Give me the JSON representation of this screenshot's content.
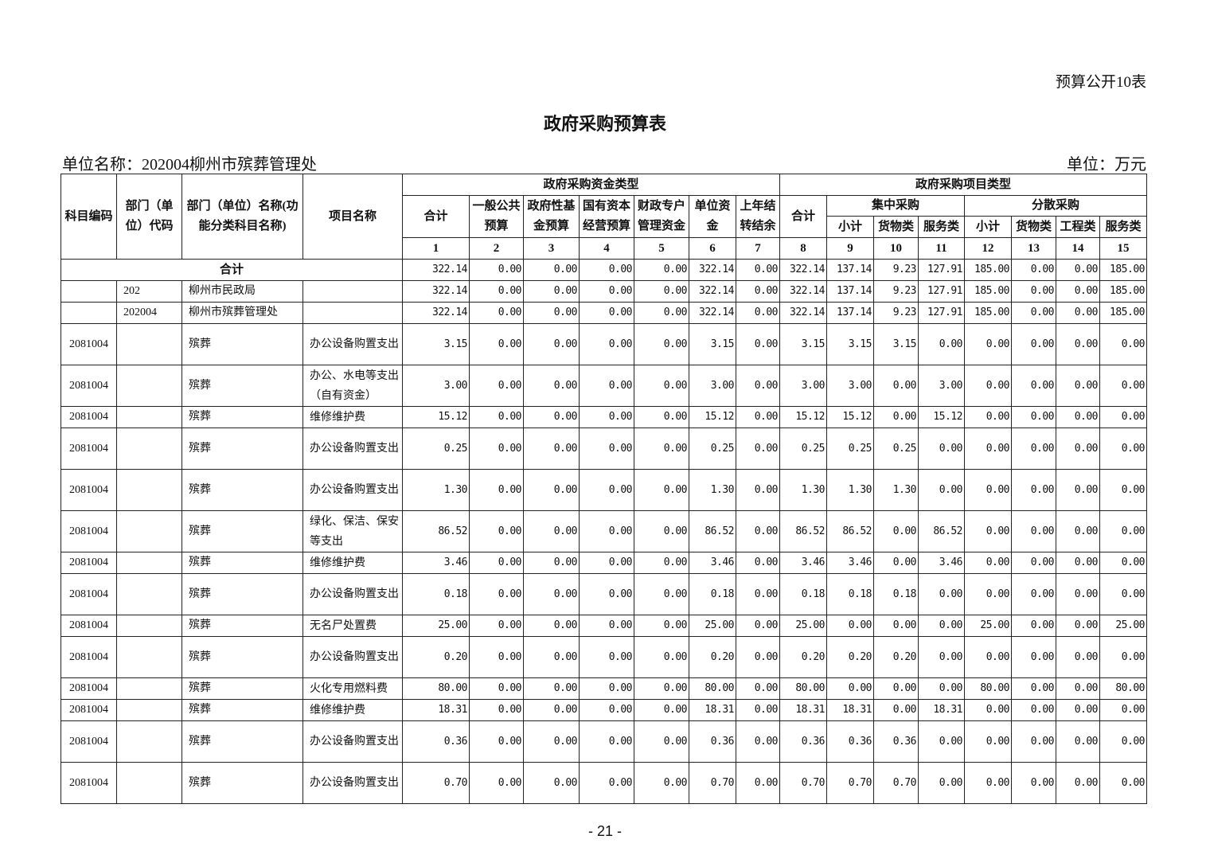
{
  "doc": {
    "corner_label": "预算公开10表",
    "title": "政府采购预算表",
    "unit_name": "单位名称：202004柳州市殡葬管理处",
    "unit": "单位：万元",
    "page_number": "- 21 -"
  },
  "header": {
    "subject_code": "科目编码",
    "dept_code": "部门（单位）代码",
    "dept_name": "部门（单位）名称(功能分类科目名称)",
    "project_name": "项目名称",
    "fund_type": "政府采购资金类型",
    "project_type": "政府采购项目类型",
    "fund_cols": [
      "合计",
      "一般公共预算",
      "政府性基金预算",
      "国有资本经营预算",
      "财政专户管理资金",
      "单位资金",
      "上年结转结余"
    ],
    "total": "合计",
    "centralized": "集中采购",
    "decentralized": "分散采购",
    "centralized_cols": [
      "小计",
      "货物类",
      "服务类"
    ],
    "decentralized_cols": [
      "小计",
      "货物类",
      "工程类",
      "服务类"
    ],
    "col_numbers": [
      "1",
      "2",
      "3",
      "4",
      "5",
      "6",
      "7",
      "8",
      "9",
      "10",
      "11",
      "12",
      "13",
      "14",
      "15"
    ]
  },
  "total_row": {
    "label": "合计",
    "values": [
      "322.14",
      "0.00",
      "0.00",
      "0.00",
      "0.00",
      "322.14",
      "0.00",
      "322.14",
      "137.14",
      "9.23",
      "127.91",
      "185.00",
      "0.00",
      "0.00",
      "185.00"
    ]
  },
  "rows": [
    {
      "code": "",
      "dept_code": "202",
      "dept_name": "柳州市民政局",
      "project": "",
      "values": [
        "322.14",
        "0.00",
        "0.00",
        "0.00",
        "0.00",
        "322.14",
        "0.00",
        "322.14",
        "137.14",
        "9.23",
        "127.91",
        "185.00",
        "0.00",
        "0.00",
        "185.00"
      ]
    },
    {
      "code": "",
      "dept_code": "202004",
      "dept_name": "柳州市殡葬管理处",
      "project": "",
      "values": [
        "322.14",
        "0.00",
        "0.00",
        "0.00",
        "0.00",
        "322.14",
        "0.00",
        "322.14",
        "137.14",
        "9.23",
        "127.91",
        "185.00",
        "0.00",
        "0.00",
        "185.00"
      ]
    },
    {
      "code": "2081004",
      "dept_code": "",
      "dept_name": "殡葬",
      "project": "办公设备购置支出",
      "values": [
        "3.15",
        "0.00",
        "0.00",
        "0.00",
        "0.00",
        "3.15",
        "0.00",
        "3.15",
        "3.15",
        "3.15",
        "0.00",
        "0.00",
        "0.00",
        "0.00",
        "0.00"
      ]
    },
    {
      "code": "2081004",
      "dept_code": "",
      "dept_name": "殡葬",
      "project": "办公、水电等支出（自有资金）",
      "values": [
        "3.00",
        "0.00",
        "0.00",
        "0.00",
        "0.00",
        "3.00",
        "0.00",
        "3.00",
        "3.00",
        "0.00",
        "3.00",
        "0.00",
        "0.00",
        "0.00",
        "0.00"
      ]
    },
    {
      "code": "2081004",
      "dept_code": "",
      "dept_name": "殡葬",
      "project": "维修维护费",
      "values": [
        "15.12",
        "0.00",
        "0.00",
        "0.00",
        "0.00",
        "15.12",
        "0.00",
        "15.12",
        "15.12",
        "0.00",
        "15.12",
        "0.00",
        "0.00",
        "0.00",
        "0.00"
      ]
    },
    {
      "code": "2081004",
      "dept_code": "",
      "dept_name": "殡葬",
      "project": "办公设备购置支出",
      "values": [
        "0.25",
        "0.00",
        "0.00",
        "0.00",
        "0.00",
        "0.25",
        "0.00",
        "0.25",
        "0.25",
        "0.25",
        "0.00",
        "0.00",
        "0.00",
        "0.00",
        "0.00"
      ]
    },
    {
      "code": "2081004",
      "dept_code": "",
      "dept_name": "殡葬",
      "project": "办公设备购置支出",
      "values": [
        "1.30",
        "0.00",
        "0.00",
        "0.00",
        "0.00",
        "1.30",
        "0.00",
        "1.30",
        "1.30",
        "1.30",
        "0.00",
        "0.00",
        "0.00",
        "0.00",
        "0.00"
      ]
    },
    {
      "code": "2081004",
      "dept_code": "",
      "dept_name": "殡葬",
      "project": "绿化、保洁、保安等支出",
      "values": [
        "86.52",
        "0.00",
        "0.00",
        "0.00",
        "0.00",
        "86.52",
        "0.00",
        "86.52",
        "86.52",
        "0.00",
        "86.52",
        "0.00",
        "0.00",
        "0.00",
        "0.00"
      ]
    },
    {
      "code": "2081004",
      "dept_code": "",
      "dept_name": "殡葬",
      "project": "维修维护费",
      "values": [
        "3.46",
        "0.00",
        "0.00",
        "0.00",
        "0.00",
        "3.46",
        "0.00",
        "3.46",
        "3.46",
        "0.00",
        "3.46",
        "0.00",
        "0.00",
        "0.00",
        "0.00"
      ]
    },
    {
      "code": "2081004",
      "dept_code": "",
      "dept_name": "殡葬",
      "project": "办公设备购置支出",
      "values": [
        "0.18",
        "0.00",
        "0.00",
        "0.00",
        "0.00",
        "0.18",
        "0.00",
        "0.18",
        "0.18",
        "0.18",
        "0.00",
        "0.00",
        "0.00",
        "0.00",
        "0.00"
      ]
    },
    {
      "code": "2081004",
      "dept_code": "",
      "dept_name": "殡葬",
      "project": "无名尸处置费",
      "values": [
        "25.00",
        "0.00",
        "0.00",
        "0.00",
        "0.00",
        "25.00",
        "0.00",
        "25.00",
        "0.00",
        "0.00",
        "0.00",
        "25.00",
        "0.00",
        "0.00",
        "25.00"
      ]
    },
    {
      "code": "2081004",
      "dept_code": "",
      "dept_name": "殡葬",
      "project": "办公设备购置支出",
      "values": [
        "0.20",
        "0.00",
        "0.00",
        "0.00",
        "0.00",
        "0.20",
        "0.00",
        "0.20",
        "0.20",
        "0.20",
        "0.00",
        "0.00",
        "0.00",
        "0.00",
        "0.00"
      ]
    },
    {
      "code": "2081004",
      "dept_code": "",
      "dept_name": "殡葬",
      "project": "火化专用燃料费",
      "values": [
        "80.00",
        "0.00",
        "0.00",
        "0.00",
        "0.00",
        "80.00",
        "0.00",
        "80.00",
        "0.00",
        "0.00",
        "0.00",
        "80.00",
        "0.00",
        "0.00",
        "80.00"
      ]
    },
    {
      "code": "2081004",
      "dept_code": "",
      "dept_name": "殡葬",
      "project": "维修维护费",
      "values": [
        "18.31",
        "0.00",
        "0.00",
        "0.00",
        "0.00",
        "18.31",
        "0.00",
        "18.31",
        "18.31",
        "0.00",
        "18.31",
        "0.00",
        "0.00",
        "0.00",
        "0.00"
      ]
    },
    {
      "code": "2081004",
      "dept_code": "",
      "dept_name": "殡葬",
      "project": "办公设备购置支出",
      "values": [
        "0.36",
        "0.00",
        "0.00",
        "0.00",
        "0.00",
        "0.36",
        "0.00",
        "0.36",
        "0.36",
        "0.36",
        "0.00",
        "0.00",
        "0.00",
        "0.00",
        "0.00"
      ]
    },
    {
      "code": "2081004",
      "dept_code": "",
      "dept_name": "殡葬",
      "project": "办公设备购置支出",
      "values": [
        "0.70",
        "0.00",
        "0.00",
        "0.00",
        "0.00",
        "0.70",
        "0.00",
        "0.70",
        "0.70",
        "0.70",
        "0.00",
        "0.00",
        "0.00",
        "0.00",
        "0.00"
      ]
    }
  ]
}
